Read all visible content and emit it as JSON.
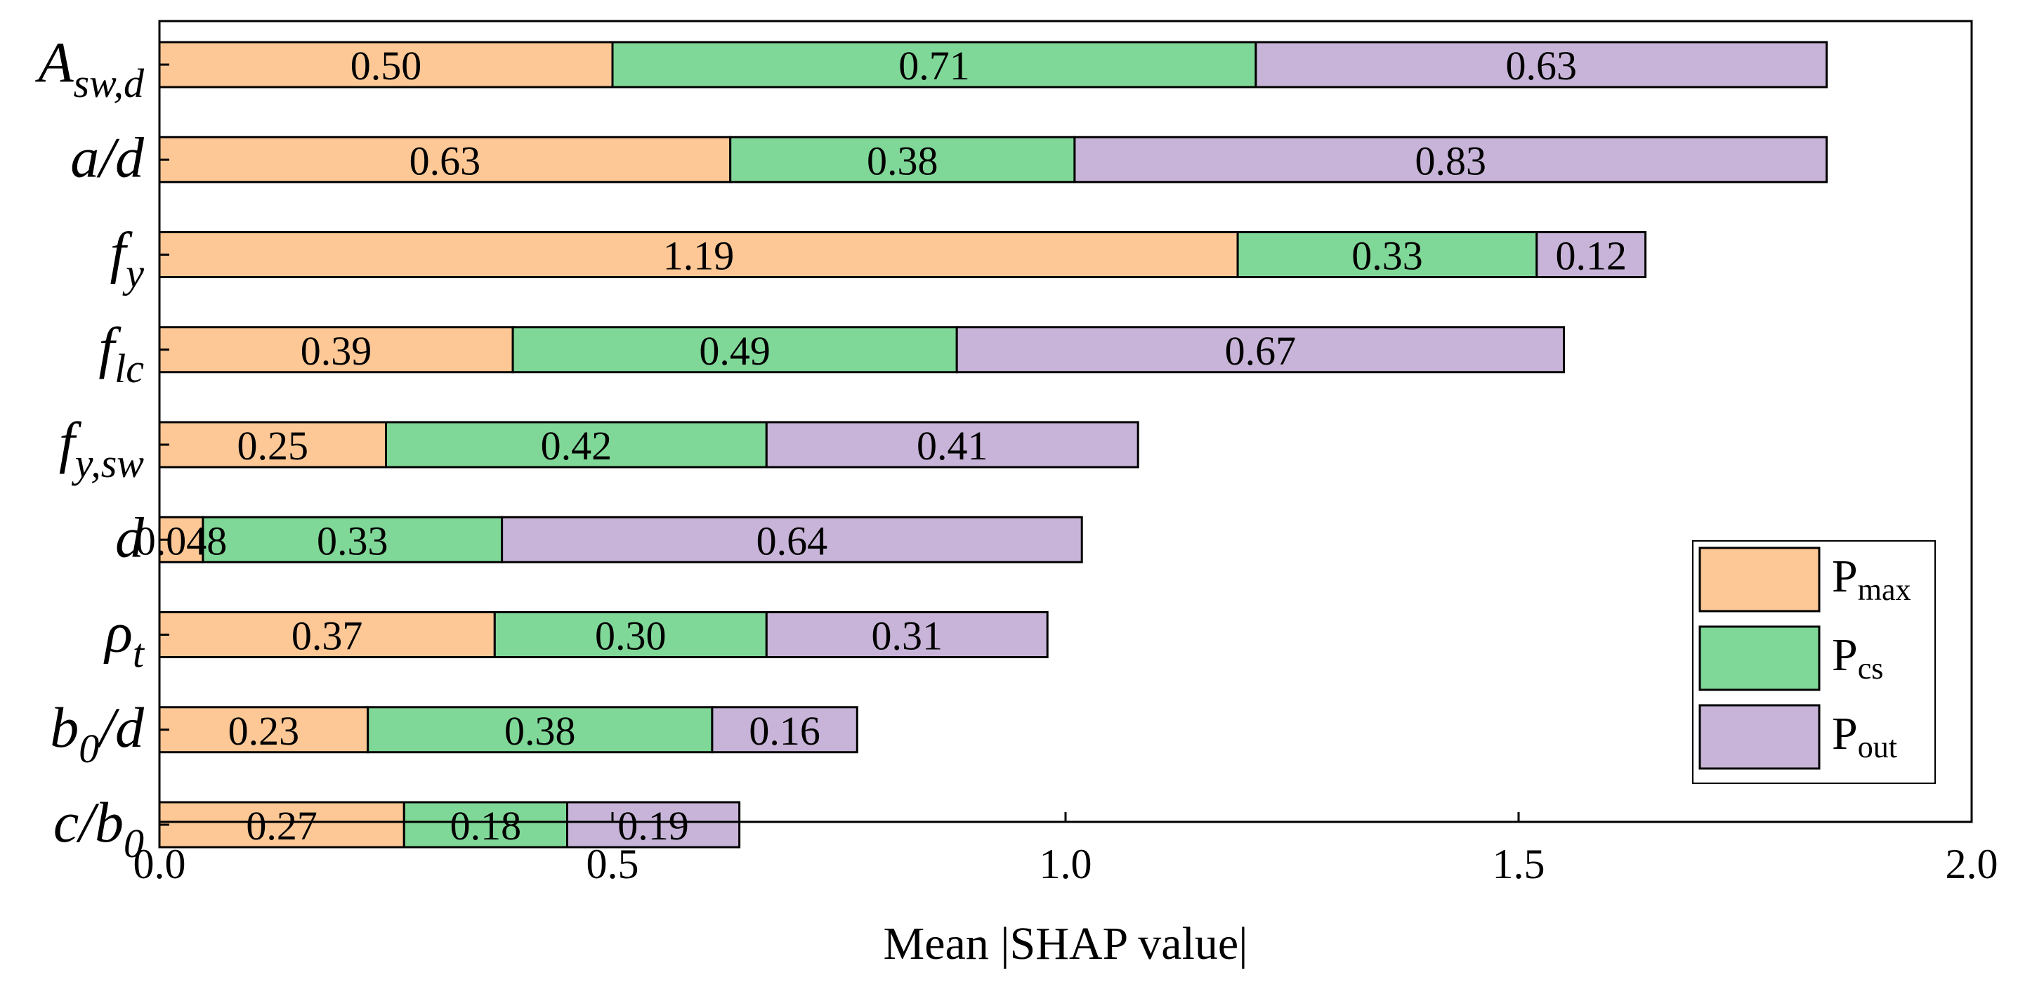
{
  "chart_data": {
    "type": "bar",
    "orientation": "horizontal",
    "stacked": true,
    "title": "",
    "xlabel": "Mean |SHAP value|",
    "ylabel": "",
    "xlim": [
      0,
      2.0
    ],
    "xticks": [
      0.0,
      0.5,
      1.0,
      1.5,
      2.0
    ],
    "xtick_labels": [
      "0.0",
      "0.5",
      "1.0",
      "1.5",
      "2.0"
    ],
    "grid": false,
    "legend_position": "bottom-right",
    "categories": [
      {
        "id": "A_sw_d",
        "base": "A",
        "sub": "sw,d"
      },
      {
        "id": "a_d",
        "base": "a/d",
        "sub": ""
      },
      {
        "id": "f_y",
        "base": "f",
        "sub": "y"
      },
      {
        "id": "f_lc",
        "base": "f",
        "sub": "lc"
      },
      {
        "id": "f_y_sw",
        "base": "f",
        "sub": "y,sw"
      },
      {
        "id": "d",
        "base": "d",
        "sub": ""
      },
      {
        "id": "rho_t",
        "base": "ρ",
        "sub": "t"
      },
      {
        "id": "b0_d",
        "base": "b",
        "sub": "0",
        "tail": "/d"
      },
      {
        "id": "c_b0",
        "base": "c/b",
        "sub": "0"
      }
    ],
    "series": [
      {
        "name": "Pmax",
        "base": "P",
        "sub": "max",
        "color": "#FDC896",
        "values": [
          0.5,
          0.63,
          1.19,
          0.39,
          0.25,
          0.048,
          0.37,
          0.23,
          0.27
        ],
        "labels": [
          "0.50",
          "0.63",
          "1.19",
          "0.39",
          "0.25",
          "0.048",
          "0.37",
          "0.23",
          "0.27"
        ]
      },
      {
        "name": "Pcs",
        "base": "P",
        "sub": "cs",
        "color": "#80D898",
        "values": [
          0.71,
          0.38,
          0.33,
          0.49,
          0.42,
          0.33,
          0.3,
          0.38,
          0.18
        ],
        "labels": [
          "0.71",
          "0.38",
          "0.33",
          "0.49",
          "0.42",
          "0.33",
          "0.30",
          "0.38",
          "0.18"
        ]
      },
      {
        "name": "Pout",
        "base": "P",
        "sub": "out",
        "color": "#C8B4D8",
        "values": [
          0.63,
          0.83,
          0.12,
          0.67,
          0.41,
          0.64,
          0.31,
          0.16,
          0.19
        ],
        "labels": [
          "0.63",
          "0.83",
          "0.12",
          "0.67",
          "0.41",
          "0.64",
          "0.31",
          "0.16",
          "0.19"
        ]
      }
    ]
  }
}
